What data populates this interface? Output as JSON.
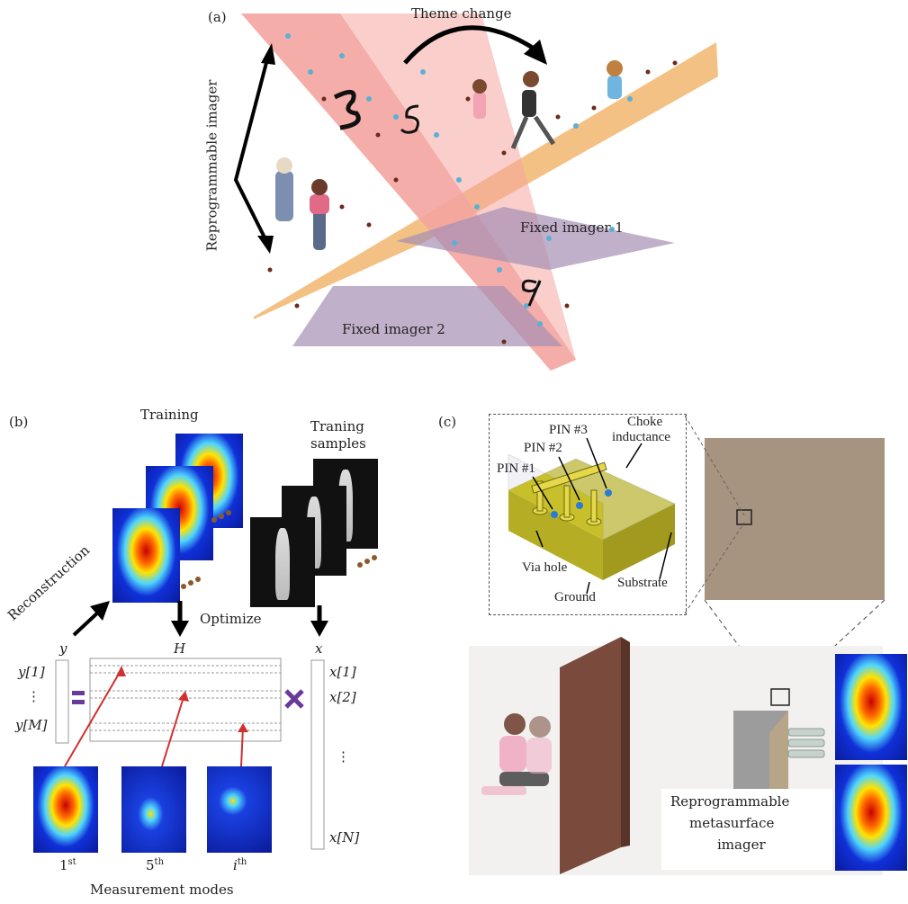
{
  "panel_a": {
    "label": "(a)",
    "theme_change": "Theme change",
    "reprogrammable_imager": "Reprogrammable imager",
    "fixed_imager_1": "Fixed imager 1",
    "fixed_imager_2": "Fixed imager 2",
    "colors": {
      "pink_plane": "#f4a5a0",
      "orange_plane": "#f2b66e",
      "purple_plane": "#a58fb3",
      "blue_dot": "#5ab0d6",
      "brown_dot": "#6b2b1e"
    }
  },
  "panel_b": {
    "label": "(b)",
    "training": "Training",
    "training_samples_1": "Traning",
    "training_samples_2": "samples",
    "reconstruction": "Reconstruction",
    "optimize": "Optimize",
    "y": "y",
    "H": "H",
    "x": "x",
    "y_items": [
      "y[1]",
      "⋮",
      "y[M]"
    ],
    "x_items": [
      "x[1]",
      "x[2]",
      "⋮",
      "x[N]"
    ],
    "mode_labels": [
      "1",
      "5",
      "i"
    ],
    "mode_sup": [
      "st",
      "th",
      "th"
    ],
    "measurement_modes": "Measurement modes",
    "colors": {
      "equals": "#6a3a9a",
      "times": "#6a3a9a",
      "arrow_red": "#d03030"
    }
  },
  "panel_c": {
    "label": "(c)",
    "pin1": "PIN #1",
    "pin2": "PIN #2",
    "pin3": "PIN #3",
    "choke_1": "Choke",
    "choke_2": "inductance",
    "via_hole": "Via hole",
    "ground": "Ground",
    "substrate": "Substrate",
    "reprog_1": "Reprogrammable",
    "reprog_2": "metasurface",
    "reprog_3": "imager",
    "colors": {
      "substrate_top": "#c8c02a",
      "board": "#a79480"
    }
  }
}
